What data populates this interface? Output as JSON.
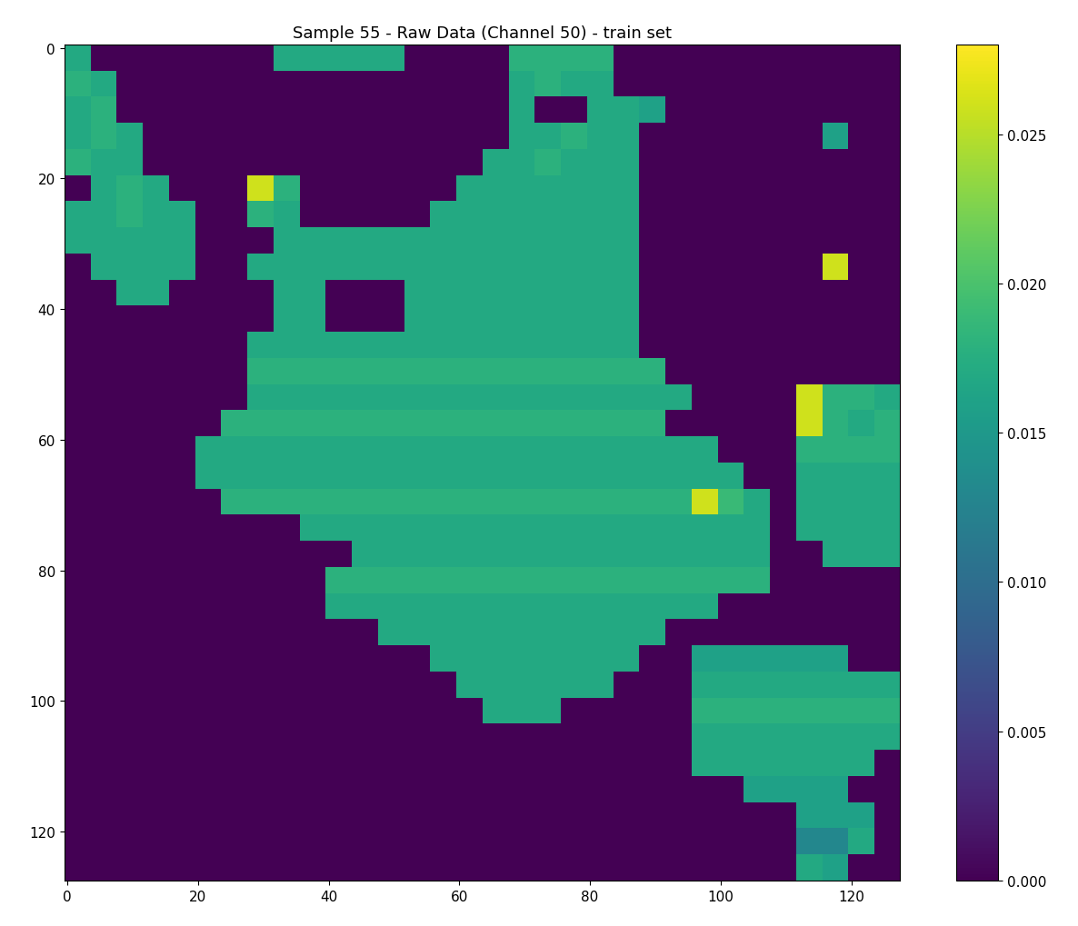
{
  "chart_data": {
    "type": "heatmap",
    "title": "Sample 55 - Raw Data (Channel 50) - train set",
    "color": "viridis",
    "xlim": [
      -0.5,
      127.5
    ],
    "ylim": [
      127.5,
      -0.5
    ],
    "xticks": [
      0,
      20,
      40,
      60,
      80,
      100,
      120
    ],
    "yticks": [
      0,
      20,
      40,
      60,
      80,
      100,
      120
    ],
    "color_range": [
      0,
      0.028
    ],
    "color_ticks": [
      {
        "value": 0,
        "label": "0.000"
      },
      {
        "value": 0.005,
        "label": "0.005"
      },
      {
        "value": 0.01,
        "label": "0.010"
      },
      {
        "value": 0.015,
        "label": "0.015"
      },
      {
        "value": 0.02,
        "label": "0.020"
      },
      {
        "value": 0.025,
        "label": "0.025"
      }
    ],
    "cells": [
      [
        0.017,
        0,
        0,
        0,
        0,
        0,
        0,
        0,
        0.017,
        0.017,
        0.017,
        0.017,
        0.017,
        0,
        0,
        0,
        0,
        0.018,
        0.018,
        0.018,
        0.018,
        0,
        0,
        0,
        0,
        0,
        0,
        0,
        0,
        0,
        0,
        0
      ],
      [
        0.018,
        0.017,
        0,
        0,
        0,
        0,
        0,
        0,
        0,
        0,
        0,
        0,
        0,
        0,
        0,
        0,
        0,
        0.017,
        0.018,
        0.017,
        0.017,
        0,
        0,
        0,
        0,
        0,
        0,
        0,
        0,
        0,
        0,
        0
      ],
      [
        0.017,
        0.018,
        0,
        0,
        0,
        0,
        0,
        0,
        0,
        0,
        0,
        0,
        0,
        0,
        0,
        0,
        0,
        0.017,
        0,
        0,
        0.017,
        0.017,
        0.016,
        0,
        0,
        0,
        0,
        0,
        0,
        0,
        0,
        0
      ],
      [
        0.017,
        0.018,
        0.017,
        0,
        0,
        0,
        0,
        0,
        0,
        0,
        0,
        0,
        0,
        0,
        0,
        0,
        0,
        0.017,
        0.017,
        0.018,
        0.017,
        0.017,
        0,
        0,
        0,
        0,
        0,
        0,
        0,
        0.016,
        0,
        0
      ],
      [
        0.018,
        0.017,
        0.017,
        0,
        0,
        0,
        0,
        0,
        0,
        0,
        0,
        0,
        0,
        0,
        0,
        0,
        0.017,
        0.017,
        0.018,
        0.017,
        0.017,
        0.017,
        0,
        0,
        0,
        0,
        0,
        0,
        0,
        0,
        0,
        0
      ],
      [
        0,
        0.017,
        0.018,
        0.017,
        0,
        0,
        0,
        0.026,
        0.018,
        0,
        0,
        0,
        0,
        0,
        0,
        0.017,
        0.017,
        0.017,
        0.017,
        0.017,
        0.017,
        0.017,
        0,
        0,
        0,
        0,
        0,
        0,
        0,
        0,
        0,
        0
      ],
      [
        0.017,
        0.017,
        0.018,
        0.017,
        0.017,
        0,
        0,
        0.018,
        0.017,
        0,
        0,
        0,
        0,
        0,
        0.017,
        0.017,
        0.017,
        0.017,
        0.017,
        0.017,
        0.017,
        0.017,
        0,
        0,
        0,
        0,
        0,
        0,
        0,
        0,
        0,
        0
      ],
      [
        0.017,
        0.017,
        0.017,
        0.017,
        0.017,
        0,
        0,
        0,
        0.017,
        0.017,
        0.017,
        0.017,
        0.017,
        0.017,
        0.017,
        0.017,
        0.017,
        0.017,
        0.017,
        0.017,
        0.017,
        0.017,
        0,
        0,
        0,
        0,
        0,
        0,
        0,
        0,
        0,
        0
      ],
      [
        0,
        0.017,
        0.017,
        0.017,
        0.017,
        0,
        0,
        0.017,
        0.017,
        0.017,
        0.017,
        0.017,
        0.017,
        0.017,
        0.017,
        0.017,
        0.017,
        0.017,
        0.017,
        0.017,
        0.017,
        0.017,
        0,
        0,
        0,
        0,
        0,
        0,
        0,
        0.026,
        0,
        0
      ],
      [
        0,
        0,
        0.017,
        0.017,
        0,
        0,
        0,
        0,
        0.017,
        0.017,
        0,
        0,
        0,
        0.017,
        0.017,
        0.017,
        0.017,
        0.017,
        0.017,
        0.017,
        0.017,
        0.017,
        0,
        0,
        0,
        0,
        0,
        0,
        0,
        0,
        0,
        0
      ],
      [
        0,
        0,
        0,
        0,
        0,
        0,
        0,
        0,
        0.017,
        0.017,
        0,
        0,
        0,
        0.017,
        0.017,
        0.017,
        0.017,
        0.017,
        0.017,
        0.017,
        0.017,
        0.017,
        0,
        0,
        0,
        0,
        0,
        0,
        0,
        0,
        0,
        0
      ],
      [
        0,
        0,
        0,
        0,
        0,
        0,
        0,
        0.017,
        0.017,
        0.017,
        0.017,
        0.017,
        0.017,
        0.017,
        0.017,
        0.017,
        0.017,
        0.017,
        0.017,
        0.017,
        0.017,
        0.017,
        0,
        0,
        0,
        0,
        0,
        0,
        0,
        0,
        0,
        0
      ],
      [
        0,
        0,
        0,
        0,
        0,
        0,
        0,
        0.018,
        0.018,
        0.018,
        0.018,
        0.018,
        0.018,
        0.018,
        0.018,
        0.018,
        0.018,
        0.018,
        0.018,
        0.018,
        0.018,
        0.018,
        0.018,
        0,
        0,
        0,
        0,
        0,
        0,
        0,
        0,
        0
      ],
      [
        0,
        0,
        0,
        0,
        0,
        0,
        0,
        0.017,
        0.017,
        0.017,
        0.017,
        0.017,
        0.017,
        0.017,
        0.017,
        0.017,
        0.017,
        0.017,
        0.017,
        0.017,
        0.017,
        0.017,
        0.017,
        0.017,
        0,
        0,
        0,
        0,
        0.026,
        0.018,
        0.018,
        0.017
      ],
      [
        0,
        0,
        0,
        0,
        0,
        0,
        0.018,
        0.018,
        0.018,
        0.018,
        0.018,
        0.018,
        0.018,
        0.018,
        0.018,
        0.018,
        0.018,
        0.018,
        0.018,
        0.018,
        0.018,
        0.018,
        0.018,
        0,
        0,
        0,
        0,
        0,
        0.026,
        0.018,
        0.017,
        0.018
      ],
      [
        0,
        0,
        0,
        0,
        0,
        0.017,
        0.017,
        0.017,
        0.017,
        0.017,
        0.017,
        0.017,
        0.017,
        0.017,
        0.017,
        0.017,
        0.017,
        0.017,
        0.017,
        0.017,
        0.017,
        0.017,
        0.017,
        0.017,
        0.017,
        0,
        0,
        0,
        0.018,
        0.018,
        0.018,
        0.018
      ],
      [
        0,
        0,
        0,
        0,
        0,
        0.017,
        0.017,
        0.017,
        0.017,
        0.017,
        0.017,
        0.017,
        0.017,
        0.017,
        0.017,
        0.017,
        0.017,
        0.017,
        0.017,
        0.017,
        0.017,
        0.017,
        0.017,
        0.017,
        0.017,
        0.017,
        0,
        0,
        0.017,
        0.017,
        0.017,
        0.017
      ],
      [
        0,
        0,
        0,
        0,
        0,
        0,
        0.018,
        0.018,
        0.018,
        0.018,
        0.018,
        0.018,
        0.018,
        0.018,
        0.018,
        0.018,
        0.018,
        0.018,
        0.018,
        0.018,
        0.018,
        0.018,
        0.018,
        0.018,
        0.026,
        0.019,
        0.017,
        0,
        0.017,
        0.017,
        0.017,
        0.017
      ],
      [
        0,
        0,
        0,
        0,
        0,
        0,
        0,
        0,
        0,
        0.017,
        0.017,
        0.017,
        0.017,
        0.017,
        0.017,
        0.017,
        0.017,
        0.017,
        0.017,
        0.017,
        0.017,
        0.017,
        0.017,
        0.017,
        0.017,
        0.017,
        0.017,
        0,
        0.017,
        0.017,
        0.017,
        0.017
      ],
      [
        0,
        0,
        0,
        0,
        0,
        0,
        0,
        0,
        0,
        0,
        0,
        0.017,
        0.017,
        0.017,
        0.017,
        0.017,
        0.017,
        0.017,
        0.017,
        0.017,
        0.017,
        0.017,
        0.017,
        0.017,
        0.017,
        0.017,
        0.017,
        0,
        0,
        0.017,
        0.017,
        0.017
      ],
      [
        0,
        0,
        0,
        0,
        0,
        0,
        0,
        0,
        0,
        0,
        0.018,
        0.018,
        0.018,
        0.018,
        0.018,
        0.018,
        0.018,
        0.018,
        0.018,
        0.018,
        0.018,
        0.018,
        0.018,
        0.018,
        0.018,
        0.018,
        0.018,
        0,
        0,
        0,
        0,
        0
      ],
      [
        0,
        0,
        0,
        0,
        0,
        0,
        0,
        0,
        0,
        0,
        0.017,
        0.017,
        0.017,
        0.017,
        0.017,
        0.017,
        0.017,
        0.017,
        0.017,
        0.017,
        0.017,
        0.017,
        0.017,
        0.017,
        0.017,
        0,
        0,
        0,
        0,
        0,
        0,
        0
      ],
      [
        0,
        0,
        0,
        0,
        0,
        0,
        0,
        0,
        0,
        0,
        0,
        0,
        0.017,
        0.017,
        0.017,
        0.017,
        0.017,
        0.017,
        0.017,
        0.017,
        0.017,
        0.017,
        0.017,
        0,
        0,
        0,
        0,
        0,
        0,
        0,
        0,
        0
      ],
      [
        0,
        0,
        0,
        0,
        0,
        0,
        0,
        0,
        0,
        0,
        0,
        0,
        0,
        0,
        0.017,
        0.017,
        0.017,
        0.017,
        0.017,
        0.017,
        0.017,
        0.017,
        0,
        0,
        0.016,
        0.016,
        0.016,
        0.016,
        0.016,
        0.016,
        0,
        0
      ],
      [
        0,
        0,
        0,
        0,
        0,
        0,
        0,
        0,
        0,
        0,
        0,
        0,
        0,
        0,
        0,
        0.017,
        0.017,
        0.017,
        0.017,
        0.017,
        0.017,
        0,
        0,
        0,
        0.017,
        0.017,
        0.017,
        0.017,
        0.017,
        0.017,
        0.017,
        0.017
      ],
      [
        0,
        0,
        0,
        0,
        0,
        0,
        0,
        0,
        0,
        0,
        0,
        0,
        0,
        0,
        0,
        0,
        0.017,
        0.017,
        0.017,
        0,
        0,
        0,
        0,
        0,
        0.018,
        0.018,
        0.018,
        0.018,
        0.018,
        0.018,
        0.018,
        0.018
      ],
      [
        0,
        0,
        0,
        0,
        0,
        0,
        0,
        0,
        0,
        0,
        0,
        0,
        0,
        0,
        0,
        0,
        0,
        0,
        0,
        0,
        0,
        0,
        0,
        0,
        0.017,
        0.017,
        0.017,
        0.017,
        0.017,
        0.017,
        0.017,
        0.017
      ],
      [
        0,
        0,
        0,
        0,
        0,
        0,
        0,
        0,
        0,
        0,
        0,
        0,
        0,
        0,
        0,
        0,
        0,
        0,
        0,
        0,
        0,
        0,
        0,
        0,
        0.017,
        0.017,
        0.017,
        0.017,
        0.017,
        0.017,
        0.017,
        0
      ],
      [
        0,
        0,
        0,
        0,
        0,
        0,
        0,
        0,
        0,
        0,
        0,
        0,
        0,
        0,
        0,
        0,
        0,
        0,
        0,
        0,
        0,
        0,
        0,
        0,
        0,
        0,
        0.016,
        0.016,
        0.016,
        0.016,
        0,
        0
      ],
      [
        0,
        0,
        0,
        0,
        0,
        0,
        0,
        0,
        0,
        0,
        0,
        0,
        0,
        0,
        0,
        0,
        0,
        0,
        0,
        0,
        0,
        0,
        0,
        0,
        0,
        0,
        0,
        0,
        0.016,
        0.016,
        0.016,
        0
      ],
      [
        0,
        0,
        0,
        0,
        0,
        0,
        0,
        0,
        0,
        0,
        0,
        0,
        0,
        0,
        0,
        0,
        0,
        0,
        0,
        0,
        0,
        0,
        0,
        0,
        0,
        0,
        0,
        0,
        0.013,
        0.013,
        0.017,
        0
      ],
      [
        0,
        0,
        0,
        0,
        0,
        0,
        0,
        0,
        0,
        0,
        0,
        0,
        0,
        0,
        0,
        0,
        0,
        0,
        0,
        0,
        0,
        0,
        0,
        0,
        0,
        0,
        0,
        0,
        0.017,
        0.016,
        0,
        0
      ]
    ]
  }
}
